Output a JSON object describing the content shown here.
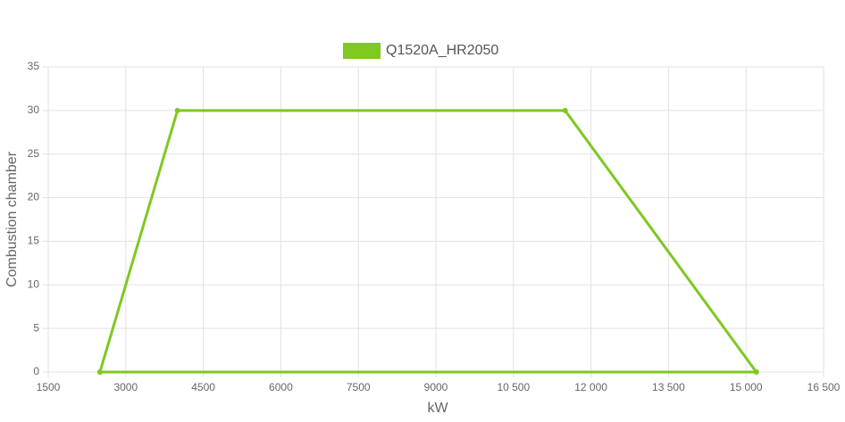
{
  "chart_data": {
    "type": "line",
    "x_label": "kW",
    "y_label": "Combustion chamber",
    "series": [
      {
        "name": "Q1520A_HR2050",
        "color": "#7ec820",
        "x": [
          2500,
          4000,
          11500,
          15200,
          2500
        ],
        "values": [
          0,
          30,
          30,
          0,
          0
        ]
      }
    ],
    "xlim": [
      1500,
      16500
    ],
    "xticks": [
      1500,
      3000,
      4500,
      6000,
      7500,
      9000,
      {
        "value": 10500,
        "label": "10 500"
      },
      {
        "value": 12000,
        "label": "12 000"
      },
      {
        "value": 13500,
        "label": "13 500"
      },
      {
        "value": 15000,
        "label": "15 000"
      },
      {
        "value": 16500,
        "label": "16 500"
      }
    ],
    "ylim": [
      0,
      35
    ],
    "yticks": [
      0,
      5,
      10,
      15,
      20,
      25,
      30,
      35
    ],
    "grid": true,
    "legend": "top"
  }
}
